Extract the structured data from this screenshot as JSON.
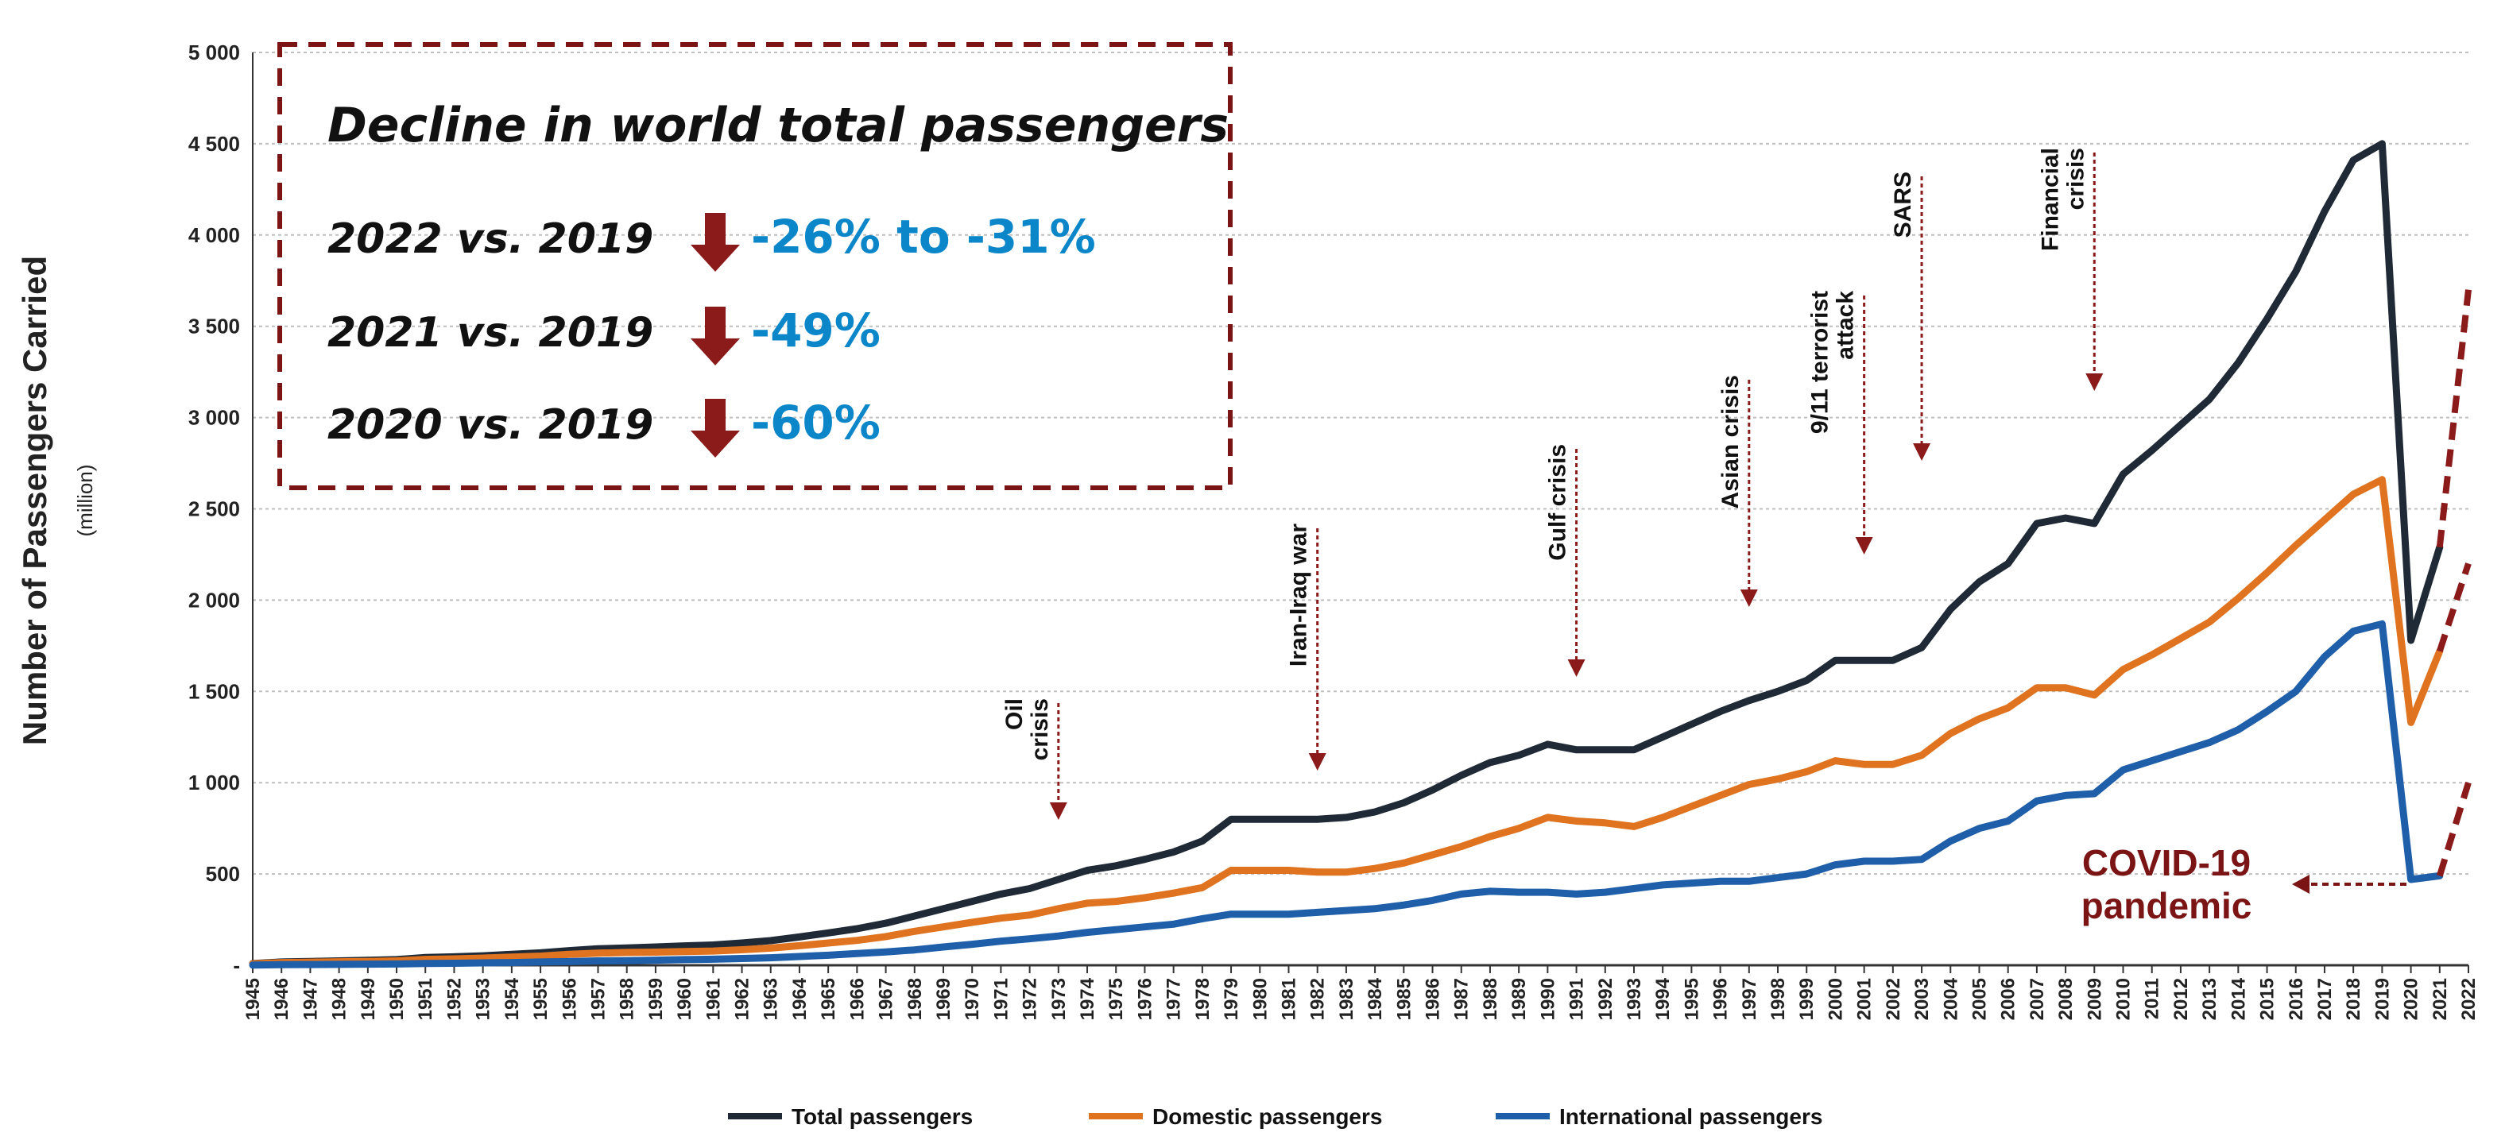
{
  "chart_data": {
    "type": "line",
    "title": "",
    "ylabel": "Number of Passengers Carried",
    "ylabel_unit": "(million)",
    "xlabel": "",
    "ylim": [
      0,
      5000
    ],
    "yticks": [
      0,
      500,
      1000,
      1500,
      2000,
      2500,
      3000,
      3500,
      4000,
      4500,
      5000
    ],
    "ytick_labels": [
      "-",
      "500",
      "1 000",
      "1 500",
      "2 000",
      "2 500",
      "3 000",
      "3 500",
      "4 000",
      "4 500",
      "5 000"
    ],
    "grid": true,
    "legend_position": "bottom",
    "years": [
      "1945",
      "1946",
      "1947",
      "1948",
      "1949",
      "1950",
      "1951",
      "1952",
      "1953",
      "1954",
      "1955",
      "1956",
      "1957",
      "1958",
      "1959",
      "1960",
      "1961",
      "1962",
      "1963",
      "1964",
      "1965",
      "1966",
      "1967",
      "1968",
      "1969",
      "1970",
      "1971",
      "1972",
      "1973",
      "1974",
      "1975",
      "1976",
      "1977",
      "1978",
      "1979",
      "1980",
      "1981",
      "1982",
      "1983",
      "1984",
      "1985",
      "1986",
      "1987",
      "1988",
      "1989",
      "1990",
      "1991",
      "1992",
      "1993",
      "1994",
      "1995",
      "1996",
      "1997",
      "1998",
      "1999",
      "2000",
      "2001",
      "2002",
      "2003",
      "2004",
      "2005",
      "2006",
      "2007",
      "2008",
      "2009",
      "2010",
      "2011",
      "2012",
      "2013",
      "2014",
      "2015",
      "2016",
      "2017",
      "2018",
      "2019",
      "2020",
      "2021",
      "2022"
    ],
    "series": [
      {
        "name": "Total passengers",
        "color": "#1f2a36",
        "values": [
          9,
          18,
          21,
          24,
          27,
          31,
          42,
          46,
          52,
          60,
          68,
          80,
          90,
          95,
          100,
          106,
          111,
          122,
          135,
          155,
          177,
          200,
          230,
          270,
          310,
          350,
          390,
          420,
          470,
          520,
          545,
          580,
          620,
          680,
          800,
          800,
          800,
          800,
          810,
          840,
          890,
          960,
          1040,
          1110,
          1150,
          1210,
          1180,
          1180,
          1180,
          1250,
          1320,
          1390,
          1450,
          1500,
          1560,
          1670,
          1670,
          1670,
          1740,
          1950,
          2100,
          2200,
          2420,
          2450,
          2420,
          2690,
          2820,
          2960,
          3100,
          3300,
          3540,
          3800,
          4130,
          4410,
          4500,
          1780,
          2290
        ],
        "projection": [
          2290,
          3700
        ]
      },
      {
        "name": "Domestic passengers",
        "color": "#e0731f",
        "values": [
          8,
          15,
          17,
          19,
          21,
          24,
          32,
          35,
          39,
          45,
          50,
          60,
          66,
          70,
          72,
          75,
          78,
          85,
          94,
          107,
          122,
          136,
          157,
          186,
          210,
          235,
          258,
          275,
          310,
          340,
          350,
          370,
          395,
          425,
          520,
          520,
          520,
          510,
          510,
          530,
          560,
          605,
          650,
          705,
          750,
          810,
          790,
          780,
          760,
          810,
          870,
          930,
          990,
          1020,
          1060,
          1120,
          1100,
          1100,
          1150,
          1270,
          1350,
          1410,
          1520,
          1520,
          1480,
          1620,
          1700,
          1790,
          1880,
          2010,
          2150,
          2300,
          2440,
          2580,
          2660,
          1330,
          1720
        ],
        "projection": [
          1720,
          2200
        ]
      },
      {
        "name": "International passengers",
        "color": "#1f5ea8",
        "values": [
          1,
          3,
          4,
          5,
          6,
          7,
          10,
          11,
          13,
          15,
          18,
          20,
          24,
          25,
          28,
          31,
          33,
          37,
          41,
          48,
          55,
          64,
          73,
          84,
          100,
          115,
          132,
          145,
          160,
          180,
          195,
          210,
          225,
          255,
          280,
          280,
          280,
          290,
          300,
          310,
          330,
          355,
          390,
          405,
          400,
          400,
          390,
          400,
          420,
          440,
          450,
          460,
          460,
          480,
          500,
          550,
          570,
          570,
          580,
          680,
          750,
          790,
          900,
          930,
          940,
          1070,
          1120,
          1170,
          1220,
          1290,
          1390,
          1500,
          1690,
          1830,
          1870,
          470,
          490
        ],
        "projection": [
          490,
          1000
        ]
      }
    ],
    "annotations": [
      {
        "lines": [
          "Oil",
          "crisis"
        ],
        "year": 1973
      },
      {
        "lines": [
          "Iran-Iraq war"
        ],
        "year": 1982
      },
      {
        "lines": [
          "Gulf crisis"
        ],
        "year": 1991
      },
      {
        "lines": [
          "Asian crisis"
        ],
        "year": 1997
      },
      {
        "lines": [
          "9/11 terrorist",
          "attack"
        ],
        "year": 2001
      },
      {
        "lines": [
          "SARS"
        ],
        "year": 2003
      },
      {
        "lines": [
          "Financial",
          "crisis"
        ],
        "year": 2009
      }
    ],
    "covid_label": [
      "COVID-19",
      "pandemic"
    ],
    "decline_box": {
      "title": "Decline in world total passengers",
      "rows": [
        {
          "label": "2022 vs. 2019",
          "value": "-26% to -31%"
        },
        {
          "label": "2021 vs. 2019",
          "value": "-49%"
        },
        {
          "label": "2020 vs. 2019",
          "value": "-60%"
        }
      ]
    }
  },
  "colors": {
    "total": "#1f2a36",
    "domestic": "#e0731f",
    "international": "#1f5ea8",
    "accent_dark_red": "#7b1414",
    "value_blue": "#0a86c9",
    "grid": "#bfbfbf"
  }
}
